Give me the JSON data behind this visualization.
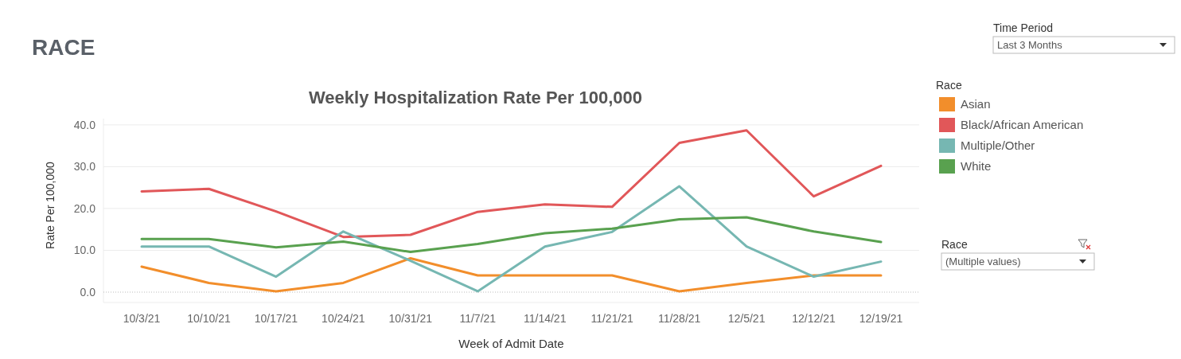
{
  "chart_data": {
    "type": "line",
    "title": "RACE",
    "subtitle": "Weekly Hospitalization Rate Per 100,000",
    "xlabel": "Week of Admit Date",
    "ylabel": "Rate Per 100,000",
    "legend_title": "Race",
    "categories": [
      "10/3/21",
      "10/10/21",
      "10/17/21",
      "10/24/21",
      "10/31/21",
      "11/7/21",
      "11/14/21",
      "11/21/21",
      "11/28/21",
      "12/5/21",
      "12/12/21",
      "12/19/21"
    ],
    "series": [
      {
        "name": "Asian",
        "color": "#f28e2b",
        "values": [
          6.1,
          2.2,
          0.2,
          2.2,
          8.1,
          4.0,
          4.0,
          4.0,
          0.2,
          2.2,
          4.0,
          4.0
        ]
      },
      {
        "name": "Black/African American",
        "color": "#e15759",
        "values": [
          24.1,
          24.7,
          19.3,
          13.2,
          13.7,
          19.2,
          21.0,
          20.4,
          35.7,
          38.7,
          22.9,
          30.2
        ]
      },
      {
        "name": "Multiple/Other",
        "color": "#76b7b2",
        "values": [
          10.9,
          10.9,
          3.7,
          14.5,
          7.5,
          0.2,
          10.9,
          14.4,
          25.3,
          10.9,
          3.7,
          7.3
        ]
      },
      {
        "name": "White",
        "color": "#59a14f",
        "values": [
          12.7,
          12.7,
          10.7,
          12.1,
          9.6,
          11.5,
          14.1,
          15.2,
          17.4,
          17.9,
          14.5,
          12.0
        ]
      }
    ],
    "ylim": [
      0,
      41.5
    ],
    "yticks": [
      {
        "value": 0,
        "label": "0.0"
      },
      {
        "value": 10,
        "label": "10.0"
      },
      {
        "value": 20,
        "label": "20.0"
      },
      {
        "value": 30,
        "label": "30.0"
      },
      {
        "value": 40,
        "label": "40.0"
      }
    ],
    "grid": "y",
    "legend": "right",
    "marker": "none",
    "line_style": "solid",
    "annotations": [
      "Time Period",
      "Last 3 Months",
      "Race",
      "(Multiple values)"
    ]
  }
}
